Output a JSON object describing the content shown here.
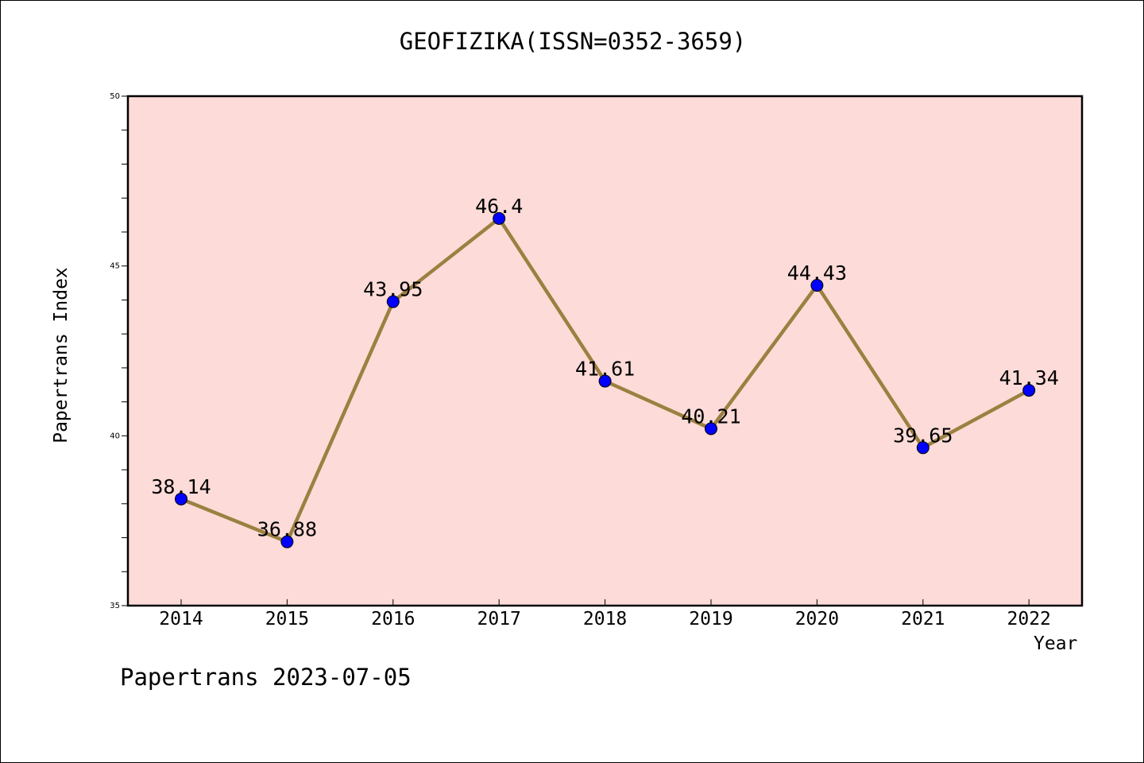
{
  "chart_data": {
    "type": "line",
    "title": "GEOFIZIKA(ISSN=0352-3659)",
    "xlabel": "Year",
    "ylabel": "Papertrans Index",
    "categories": [
      "2014",
      "2015",
      "2016",
      "2017",
      "2018",
      "2019",
      "2020",
      "2021",
      "2022"
    ],
    "series": [
      {
        "values": [
          38.14,
          36.88,
          43.95,
          46.4,
          41.61,
          40.21,
          44.43,
          39.65,
          41.34
        ],
        "labels": [
          "38.14",
          "36.88",
          "43.95",
          "46.4",
          "41.61",
          "40.21",
          "44.43",
          "39.65",
          "41.34"
        ],
        "line_color": "#9b8040",
        "marker_color": "#0000ff"
      }
    ],
    "ylim": [
      35,
      50
    ],
    "yticks": [
      35,
      40,
      45,
      50
    ],
    "ytick_labels": [
      "35",
      "40",
      "45",
      "50"
    ],
    "y_minor_step": 1,
    "grid": false,
    "legend": "none",
    "plot_background": "#fddbd8"
  },
  "footer": {
    "note": "Papertrans 2023-07-05"
  }
}
